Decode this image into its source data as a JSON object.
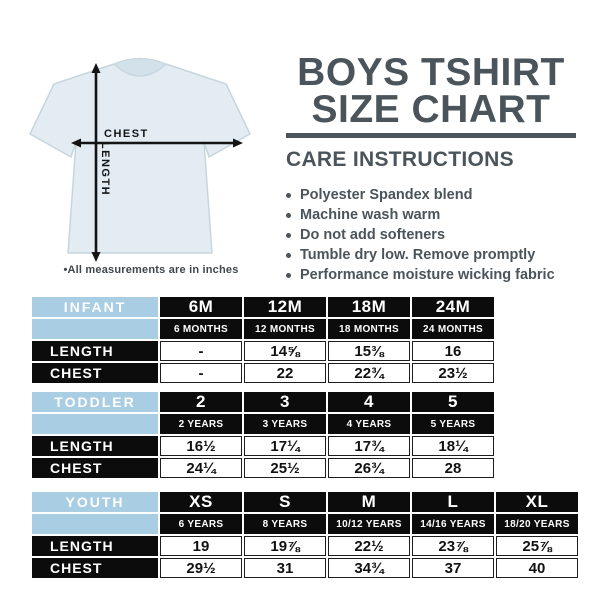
{
  "colors": {
    "slate": "#4a545a",
    "blue": "#a9cde2",
    "black": "#0c0c0c",
    "ink": "#141414",
    "shirt": "#e2ecf2",
    "shirt-stroke": "#c7d6de",
    "collar": "#d2e1ea",
    "caption": "#3f474d"
  },
  "header": {
    "title_line1": "BOYS TSHIRT",
    "title_line2": "SIZE CHART"
  },
  "care": {
    "heading": "CARE INSTRUCTIONS",
    "items": [
      "Polyester Spandex blend",
      "Machine wash warm",
      "Do not add softeners",
      "Tumble dry low. Remove promptly",
      "Performance moisture wicking fabric"
    ]
  },
  "diagram": {
    "chest_label": "CHEST",
    "length_label": "LENGTH",
    "caption": "•All measurements are in inches"
  },
  "tables": [
    {
      "group": "INFANT",
      "sizes": [
        "6M",
        "12M",
        "18M",
        "24M"
      ],
      "ages": [
        "6 MONTHS",
        "12 MONTHS",
        "18 MONTHS",
        "24 MONTHS"
      ],
      "rows": [
        {
          "label": "LENGTH",
          "values": [
            "-",
            "14⅝",
            "15⅜",
            "16"
          ]
        },
        {
          "label": "CHEST",
          "values": [
            "-",
            "22",
            "22¾",
            "23½"
          ]
        }
      ]
    },
    {
      "group": "TODDLER",
      "sizes": [
        "2",
        "3",
        "4",
        "5"
      ],
      "ages": [
        "2 YEARS",
        "3 YEARS",
        "4 YEARS",
        "5 YEARS"
      ],
      "rows": [
        {
          "label": "LENGTH",
          "values": [
            "16½",
            "17¼",
            "17¾",
            "18¼"
          ]
        },
        {
          "label": "CHEST",
          "values": [
            "24¼",
            "25½",
            "26¾",
            "28"
          ]
        }
      ]
    },
    {
      "group": "YOUTH",
      "sizes": [
        "XS",
        "S",
        "M",
        "L",
        "XL"
      ],
      "ages": [
        "6 YEARS",
        "8 YEARS",
        "10/12 YEARS",
        "14/16 YEARS",
        "18/20 YEARS"
      ],
      "rows": [
        {
          "label": "LENGTH",
          "values": [
            "19",
            "19⅞",
            "22½",
            "23⅞",
            "25⅞"
          ]
        },
        {
          "label": "CHEST",
          "values": [
            "29½",
            "31",
            "34¾",
            "37",
            "40"
          ]
        }
      ]
    }
  ]
}
